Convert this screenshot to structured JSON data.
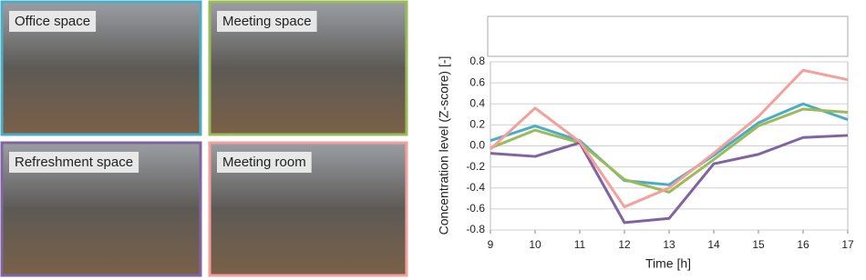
{
  "photos": [
    {
      "label": "Office space",
      "color": "#4bacc6"
    },
    {
      "label": "Meeting space",
      "color": "#9bbb59"
    },
    {
      "label": "Refreshment space",
      "color": "#8064a2"
    },
    {
      "label": "Meeting room",
      "color": "#f4a09c"
    }
  ],
  "chart_data": {
    "type": "line",
    "x_label": "Time [h]",
    "y_label": "Concentration level (Z-score) [-]",
    "x": [
      9,
      10,
      11,
      12,
      13,
      14,
      15,
      16,
      17
    ],
    "xlim": [
      9,
      17
    ],
    "xticks": [
      9,
      10,
      11,
      12,
      13,
      14,
      15,
      16,
      17
    ],
    "ylim": [
      -0.8,
      0.8
    ],
    "yticks": [
      -0.8,
      -0.6,
      -0.4,
      -0.2,
      {
        "value": 0,
        "label": "0.0"
      },
      0.2,
      0.4,
      0.6,
      0.8
    ],
    "grid": true,
    "series": [
      {
        "name": "Office space",
        "color": "#4bacc6",
        "values": [
          0.05,
          0.19,
          0.05,
          -0.33,
          -0.37,
          -0.09,
          0.22,
          0.4,
          0.25
        ]
      },
      {
        "name": "Meeting space",
        "color": "#9bbb59",
        "values": [
          -0.02,
          0.15,
          0.03,
          -0.32,
          -0.44,
          -0.13,
          0.19,
          0.35,
          0.32
        ]
      },
      {
        "name": "Refreshment space",
        "color": "#8064a2",
        "values": [
          -0.07,
          -0.1,
          0.03,
          -0.73,
          -0.69,
          -0.17,
          -0.08,
          0.08,
          0.1
        ]
      },
      {
        "name": "Meeting room",
        "color": "#f4a09c",
        "values": [
          -0.03,
          0.36,
          0.04,
          -0.58,
          -0.4,
          -0.07,
          0.28,
          0.72,
          0.63
        ]
      }
    ]
  }
}
